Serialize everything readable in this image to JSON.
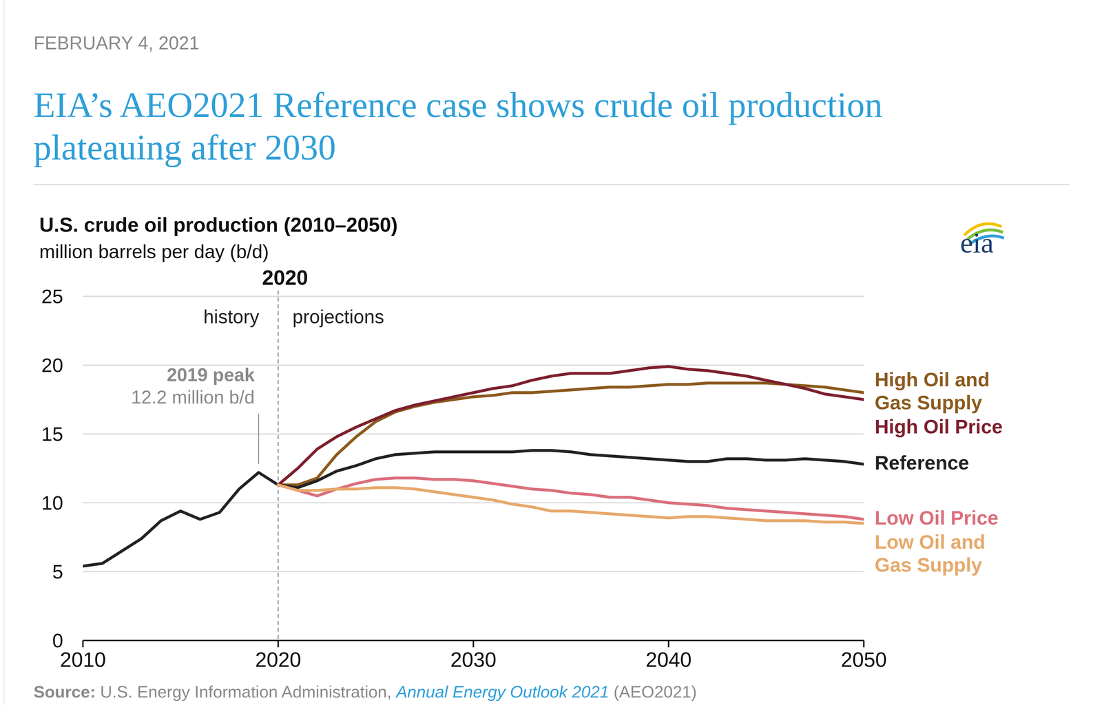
{
  "chart_data": {
    "type": "line",
    "date": "FEBRUARY 4, 2021",
    "headline": "EIA’s AEO2021 Reference case shows crude oil production plateauing after 2030",
    "title": "U.S. crude oil production (2010–2050)",
    "subtitle": "million barrels per day (b/d)",
    "logo": "eia",
    "x": [
      2010,
      2011,
      2012,
      2013,
      2014,
      2015,
      2016,
      2017,
      2018,
      2019,
      2020,
      2021,
      2022,
      2023,
      2024,
      2025,
      2026,
      2027,
      2028,
      2029,
      2030,
      2031,
      2032,
      2033,
      2034,
      2035,
      2036,
      2037,
      2038,
      2039,
      2040,
      2041,
      2042,
      2043,
      2044,
      2045,
      2046,
      2047,
      2048,
      2049,
      2050
    ],
    "xlim": [
      2010,
      2050
    ],
    "xticks": [
      2010,
      2020,
      2030,
      2040,
      2050
    ],
    "ylim": [
      0,
      25
    ],
    "yticks": [
      0,
      5,
      10,
      15,
      20,
      25
    ],
    "grid": true,
    "series": [
      {
        "name": "High Oil and Gas Supply",
        "color": "#8c5a1e",
        "values": [
          null,
          null,
          null,
          null,
          null,
          null,
          null,
          null,
          null,
          null,
          11.3,
          11.3,
          11.8,
          13.5,
          14.8,
          15.9,
          16.6,
          17.0,
          17.3,
          17.5,
          17.7,
          17.8,
          18.0,
          18.0,
          18.1,
          18.2,
          18.3,
          18.4,
          18.4,
          18.5,
          18.6,
          18.6,
          18.7,
          18.7,
          18.7,
          18.7,
          18.6,
          18.5,
          18.4,
          18.2,
          18.0
        ]
      },
      {
        "name": "High Oil Price",
        "color": "#7d1f2e",
        "values": [
          null,
          null,
          null,
          null,
          null,
          null,
          null,
          null,
          null,
          null,
          11.3,
          12.5,
          13.9,
          14.8,
          15.5,
          16.1,
          16.7,
          17.1,
          17.4,
          17.7,
          18.0,
          18.3,
          18.5,
          18.9,
          19.2,
          19.4,
          19.4,
          19.4,
          19.6,
          19.8,
          19.9,
          19.7,
          19.6,
          19.4,
          19.2,
          18.9,
          18.6,
          18.3,
          17.9,
          17.7,
          17.5
        ]
      },
      {
        "name": "Reference",
        "color": "#222222",
        "values": [
          5.4,
          5.6,
          6.5,
          7.4,
          8.7,
          9.4,
          8.8,
          9.3,
          11.0,
          12.2,
          11.3,
          11.1,
          11.6,
          12.3,
          12.7,
          13.2,
          13.5,
          13.6,
          13.7,
          13.7,
          13.7,
          13.7,
          13.7,
          13.8,
          13.8,
          13.7,
          13.5,
          13.4,
          13.3,
          13.2,
          13.1,
          13.0,
          13.0,
          13.2,
          13.2,
          13.1,
          13.1,
          13.2,
          13.1,
          13.0,
          12.8
        ]
      },
      {
        "name": "Low Oil Price",
        "color": "#db6f7b",
        "values": [
          null,
          null,
          null,
          null,
          null,
          null,
          null,
          null,
          null,
          null,
          11.3,
          10.9,
          10.5,
          11.0,
          11.4,
          11.7,
          11.8,
          11.8,
          11.7,
          11.7,
          11.6,
          11.4,
          11.2,
          11.0,
          10.9,
          10.7,
          10.6,
          10.4,
          10.4,
          10.2,
          10.0,
          9.9,
          9.8,
          9.6,
          9.5,
          9.4,
          9.3,
          9.2,
          9.1,
          9.0,
          8.8
        ]
      },
      {
        "name": "Low Oil and Gas Supply",
        "color": "#e6a96b",
        "values": [
          null,
          null,
          null,
          null,
          null,
          null,
          null,
          null,
          null,
          null,
          11.3,
          10.9,
          10.9,
          11.0,
          11.0,
          11.1,
          11.1,
          11.0,
          10.8,
          10.6,
          10.4,
          10.2,
          9.9,
          9.7,
          9.4,
          9.4,
          9.3,
          9.2,
          9.1,
          9.0,
          8.9,
          9.0,
          9.0,
          8.9,
          8.8,
          8.7,
          8.7,
          8.7,
          8.6,
          8.6,
          8.5
        ]
      }
    ],
    "divider": {
      "x": 2020,
      "label": "2020",
      "left": "history",
      "right": "projections"
    },
    "annotations": [
      {
        "lines": [
          "2019 peak",
          "12.2 million b/d"
        ],
        "x": 2019,
        "y": 12.2
      }
    ],
    "source": {
      "label": "Source:",
      "text": "U.S. Energy Information Administration,",
      "link": "Annual Energy Outlook 2021",
      "suffix": "(AEO2021)"
    }
  }
}
